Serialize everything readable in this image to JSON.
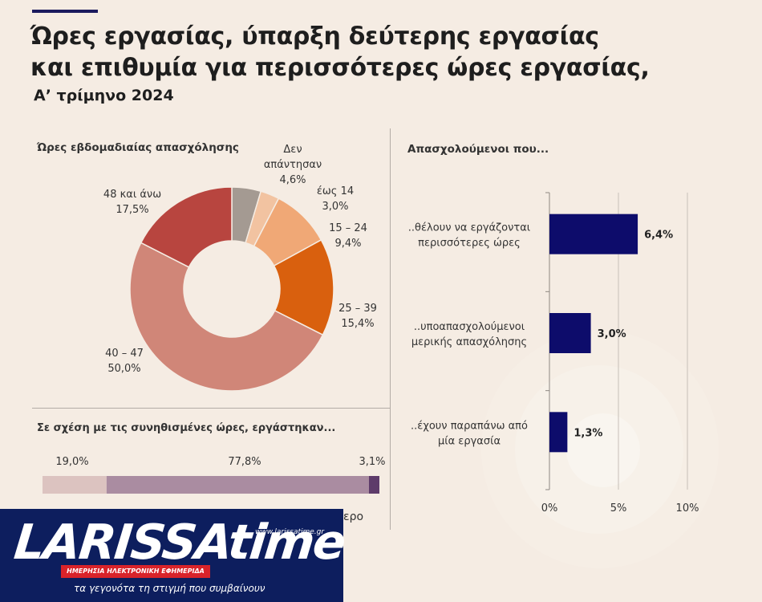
{
  "title_line1": "Ώρες εργασίας, ύπαρξη δεύτερης εργασίας",
  "title_line2": "και επιθυμία για περισσότερες ώρες εργασίας,",
  "subtitle": "Α’ τρίμηνο 2024",
  "colors": {
    "navy": "#0d0c6b",
    "divider": "#b3aca6"
  },
  "chart_data": [
    {
      "type": "pie",
      "title": "Ώρες εβδομαδιαίας απασχόλησης",
      "slices": [
        {
          "label": "Δεν απάντησαν",
          "value": 4.6,
          "value_label": "4,6%",
          "color": "#a49a92"
        },
        {
          "label": "έως 14",
          "value": 3.0,
          "value_label": "3,0%",
          "color": "#f2c3a1"
        },
        {
          "label": "15 – 24",
          "value": 9.4,
          "value_label": "9,4%",
          "color": "#f0a876"
        },
        {
          "label": "25 – 39",
          "value": 15.4,
          "value_label": "15,4%",
          "color": "#d9600e"
        },
        {
          "label": "40 – 47",
          "value": 50.0,
          "value_label": "50,0%",
          "color": "#d08678"
        },
        {
          "label": "48 και άνω",
          "value": 17.5,
          "value_label": "17,5%",
          "color": "#b8453f"
        }
      ]
    },
    {
      "type": "bar",
      "orientation": "horizontal-stacked",
      "title": "Σε σχέση με τις συνηθισμένες ώρες, εργάστηκαν...",
      "segments": [
        {
          "value": 19.0,
          "value_label": "19,0%",
          "color": "#dcc3c0"
        },
        {
          "value": 77.8,
          "value_label": "77,8%",
          "color": "#aa8ca1"
        },
        {
          "value": 3.1,
          "value_label": "3,1%",
          "color": "#5e3b6a"
        }
      ],
      "partial_legend_text": "ερο"
    },
    {
      "type": "bar",
      "orientation": "horizontal",
      "title": "Απασχολούμενοι που...",
      "categories": [
        "..θέλουν να εργάζονται περισσότερες ώρες",
        "..υποαπασχολούμενοι μερικής απασχόλησης",
        "..έχουν παραπάνω από μία εργασία"
      ],
      "category_lines": [
        [
          "..θέλουν να εργάζονται",
          "περισσότερες ώρες"
        ],
        [
          "..υποαπασχολούμενοι",
          "μερικής απασχόλησης"
        ],
        [
          "..έχουν παραπάνω από",
          "μία εργασία"
        ]
      ],
      "values": [
        6.4,
        3.0,
        1.3
      ],
      "value_labels": [
        "6,4%",
        "3,0%",
        "1,3%"
      ],
      "xlim": [
        0,
        10
      ],
      "xticks": [
        0,
        5,
        10
      ],
      "xtick_labels": [
        "0%",
        "5%",
        "10%"
      ],
      "grid": true
    }
  ],
  "logo": {
    "wordmark": "LARISSAtime",
    "url": "www.larissatime.gr",
    "strip": "ΗΜΕΡΗΣΙΑ ΗΛΕΚΤΡΟΝΙΚΗ ΕΦΗΜΕΡΙΔΑ",
    "tagline": "τα γεγονότα τη στιγμή που συμβαίνουν"
  }
}
